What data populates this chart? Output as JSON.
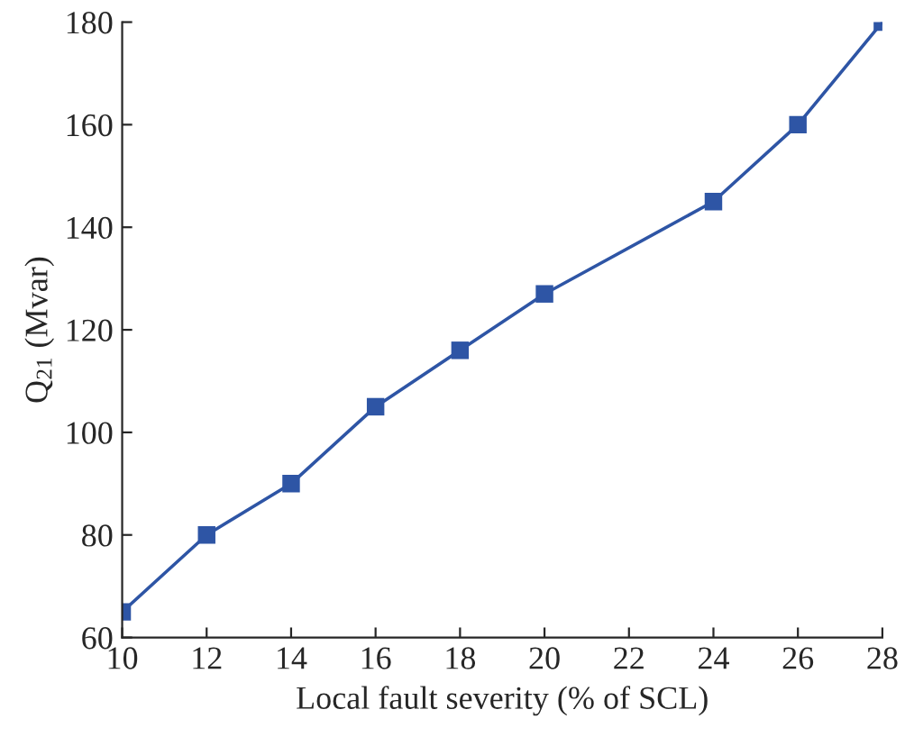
{
  "chart_data": {
    "type": "line",
    "xlabel": "Local fault severity (% of SCL)",
    "ylabel": "Q$_{21}$ (Mvar)",
    "x": [
      10,
      12,
      14,
      16,
      18,
      20,
      24,
      26,
      28
    ],
    "series": [
      {
        "color": "#2e55a5",
        "values": [
          65,
          80,
          90,
          105,
          116,
          127,
          145,
          160,
          180
        ]
      }
    ],
    "xlim": [
      10,
      28
    ],
    "xticks": [
      10,
      12,
      14,
      16,
      18,
      20,
      22,
      24,
      26,
      28
    ],
    "ylim": [
      60,
      180
    ],
    "yticks": [
      60,
      80,
      100,
      120,
      140,
      160,
      180
    ],
    "marker": "square",
    "line_style": "solid",
    "grid": false,
    "legend": false
  }
}
